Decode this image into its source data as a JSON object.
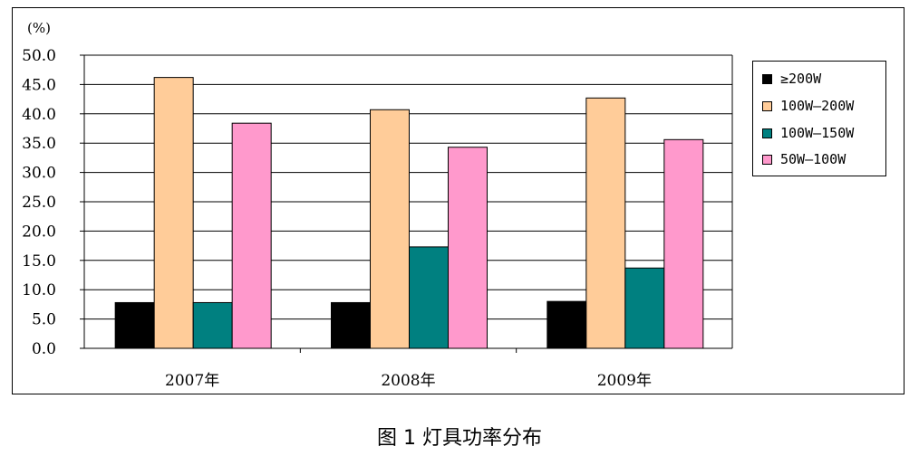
{
  "caption": "图 1 灯具功率分布",
  "chart_data": {
    "type": "bar",
    "title": "",
    "ylabel": "(%)",
    "xlabel": "",
    "ylim": [
      0,
      50
    ],
    "yticks": [
      "50.0",
      "45.0",
      "40.0",
      "35.0",
      "30.0",
      "25.0",
      "20.0",
      "15.0",
      "10.0",
      "5.0",
      "0.0"
    ],
    "categories": [
      "2007年",
      "2008年",
      "2009年"
    ],
    "series": [
      {
        "name": "≥200W",
        "color": "#000000",
        "values": [
          7.8,
          7.8,
          8.0
        ]
      },
      {
        "name": "100W—200W",
        "color": "#FFCC99",
        "values": [
          46.2,
          40.7,
          42.7
        ]
      },
      {
        "name": "100W—150W",
        "color": "#008080",
        "values": [
          7.8,
          17.3,
          13.7
        ]
      },
      {
        "name": "50W—100W",
        "color": "#FF99CC",
        "values": [
          38.4,
          34.3,
          35.6
        ]
      }
    ],
    "grid": true,
    "legend_position": "right"
  }
}
